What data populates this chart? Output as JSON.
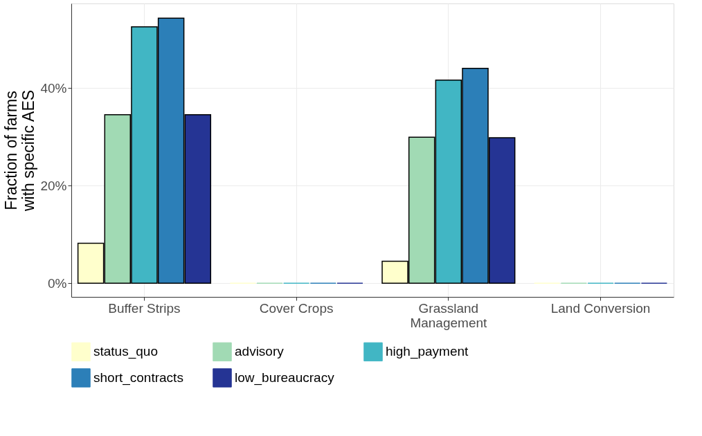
{
  "chart_data": {
    "type": "bar",
    "ylabel": "Fraction of farms\nwith specific AES",
    "categories": [
      "Buffer Strips",
      "Cover Crops",
      "Grassland\nManagement",
      "Land Conversion"
    ],
    "series": [
      {
        "name": "status_quo",
        "color": "#ffffcc",
        "values": [
          8.2,
          0,
          4.5,
          0
        ]
      },
      {
        "name": "advisory",
        "color": "#a1dab4",
        "values": [
          34.5,
          0,
          29.9,
          0
        ]
      },
      {
        "name": "high_payment",
        "color": "#41b6c4",
        "values": [
          52.5,
          0,
          41.6,
          0
        ]
      },
      {
        "name": "short_contracts",
        "color": "#2c7fb8",
        "values": [
          54.3,
          0,
          44.0,
          0
        ]
      },
      {
        "name": "low_bureaucracy",
        "color": "#253494",
        "values": [
          34.5,
          0,
          29.8,
          0
        ]
      }
    ],
    "ylim": [
      -2.8,
      57.3
    ],
    "yticks": [
      {
        "value": 0,
        "label": "0%"
      },
      {
        "value": 20,
        "label": "20%"
      },
      {
        "value": 40,
        "label": "40%"
      }
    ],
    "grid": true,
    "legend": "bottom"
  }
}
